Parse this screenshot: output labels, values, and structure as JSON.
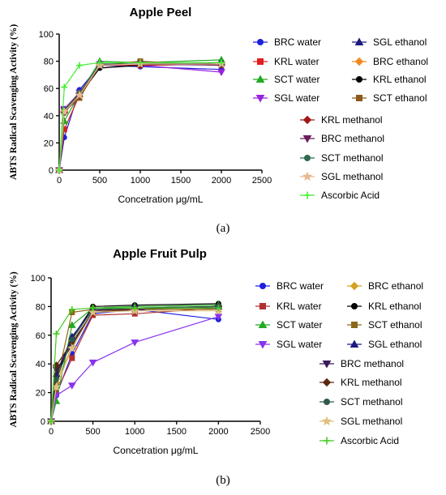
{
  "chart_data": [
    {
      "type": "line",
      "panel_label": "(a)",
      "title": "Apple Peel",
      "xlabel": "Concetration μg/mL",
      "ylabel": "ABTS Radical Scavenging Activity (%)",
      "xlim": [
        0,
        2500
      ],
      "ylim": [
        0,
        100
      ],
      "xticks": [
        "0",
        "500",
        "1000",
        "1500",
        "2000",
        "2500"
      ],
      "yticks": [
        "0",
        "20",
        "40",
        "60",
        "80",
        "100"
      ],
      "x": [
        0,
        62.5,
        250,
        500,
        1000,
        2000
      ],
      "series": [
        {
          "name": "BRC water",
          "color": "#1f1fe0",
          "marker": "circle",
          "values": [
            0,
            24,
            59,
            77,
            76,
            74
          ]
        },
        {
          "name": "KRL water",
          "color": "#e01f1f",
          "marker": "square",
          "values": [
            0,
            30,
            55,
            77,
            77,
            78
          ]
        },
        {
          "name": "SCT water",
          "color": "#22aa22",
          "marker": "triangle-up",
          "values": [
            0,
            36,
            56,
            80,
            79,
            81
          ]
        },
        {
          "name": "SGL water",
          "color": "#9922dd",
          "marker": "triangle-down",
          "values": [
            0,
            45,
            57,
            78,
            77,
            72
          ]
        },
        {
          "name": "SGL ethanol",
          "color": "#1a1a80",
          "marker": "triangle-up",
          "values": [
            0,
            44,
            56,
            78,
            78,
            79
          ]
        },
        {
          "name": "BRC ethanol",
          "color": "#f08a20",
          "marker": "diamond",
          "values": [
            0,
            43,
            54,
            77,
            78,
            78
          ]
        },
        {
          "name": "KRL ethanol",
          "color": "#000000",
          "marker": "circle",
          "values": [
            0,
            42,
            55,
            75,
            77,
            79
          ]
        },
        {
          "name": "SCT ethanol",
          "color": "#8b5a1a",
          "marker": "square",
          "values": [
            0,
            43,
            53,
            77,
            80,
            77
          ]
        },
        {
          "name": "KRL methanol",
          "color": "#a01818",
          "marker": "diamond",
          "values": [
            0,
            43,
            56,
            78,
            77,
            78
          ]
        },
        {
          "name": "BRC methanol",
          "color": "#6a1f5a",
          "marker": "triangle-down",
          "values": [
            0,
            44,
            55,
            77,
            78,
            77
          ]
        },
        {
          "name": "SCT methanol",
          "color": "#2f6a50",
          "marker": "circle",
          "values": [
            0,
            44,
            57,
            78,
            78,
            79
          ]
        },
        {
          "name": "SGL methanol",
          "color": "#e8b890",
          "marker": "star",
          "values": [
            0,
            43,
            55,
            77,
            78,
            78
          ]
        },
        {
          "name": "Ascorbic Acid",
          "color": "#44ee33",
          "marker": "plus",
          "values": [
            0,
            61,
            77,
            79,
            79,
            79
          ]
        }
      ]
    },
    {
      "type": "line",
      "panel_label": "(b)",
      "title": "Apple Fruit Pulp",
      "xlabel": "Concetration μg/mL",
      "ylabel": "ABTS Radical Scavenging Activity (%)",
      "xlim": [
        0,
        2500
      ],
      "ylim": [
        0,
        100
      ],
      "xticks": [
        "0",
        "500",
        "1000",
        "1500",
        "2000",
        "2500"
      ],
      "yticks": [
        "0",
        "20",
        "40",
        "60",
        "80",
        "100"
      ],
      "x": [
        0,
        62.5,
        250,
        500,
        1000,
        2000
      ],
      "series": [
        {
          "name": "BRC water",
          "color": "#1f1fe0",
          "marker": "circle",
          "values": [
            0,
            18,
            47,
            75,
            78,
            71
          ]
        },
        {
          "name": "BRC ethanol",
          "color": "#d4a020",
          "marker": "diamond",
          "values": [
            0,
            27,
            52,
            77,
            78,
            78
          ]
        },
        {
          "name": "KRL water",
          "color": "#b03030",
          "marker": "square",
          "values": [
            0,
            20,
            44,
            74,
            75,
            79
          ]
        },
        {
          "name": "KRL ethanol",
          "color": "#000000",
          "marker": "circle",
          "values": [
            0,
            31,
            58,
            80,
            81,
            82
          ]
        },
        {
          "name": "SCT water",
          "color": "#22aa22",
          "marker": "triangle-up",
          "values": [
            0,
            14,
            67,
            79,
            80,
            81
          ]
        },
        {
          "name": "SCT ethanol",
          "color": "#8a6a1a",
          "marker": "square",
          "values": [
            0,
            26,
            76,
            78,
            78,
            78
          ]
        },
        {
          "name": "SGL water",
          "color": "#8833ee",
          "marker": "triangle-down",
          "values": [
            0,
            18,
            25,
            41,
            55,
            73
          ]
        },
        {
          "name": "SGL ethanol",
          "color": "#1a1a80",
          "marker": "triangle-up",
          "values": [
            0,
            33,
            59,
            78,
            79,
            80
          ]
        },
        {
          "name": "BRC methanol",
          "color": "#3a1a5a",
          "marker": "triangle-down",
          "values": [
            0,
            36,
            53,
            77,
            79,
            79
          ]
        },
        {
          "name": "KRL methanol",
          "color": "#5a2a10",
          "marker": "diamond",
          "values": [
            0,
            39,
            55,
            76,
            78,
            80
          ]
        },
        {
          "name": "SCT methanol",
          "color": "#2f5a4a",
          "marker": "circle",
          "values": [
            0,
            29,
            57,
            78,
            79,
            80
          ]
        },
        {
          "name": "SGL methanol",
          "color": "#e0c080",
          "marker": "star",
          "values": [
            0,
            24,
            51,
            76,
            77,
            77
          ]
        },
        {
          "name": "Ascorbic Acid",
          "color": "#44cc22",
          "marker": "plus",
          "values": [
            0,
            61,
            78,
            79,
            79,
            79
          ]
        }
      ]
    }
  ]
}
